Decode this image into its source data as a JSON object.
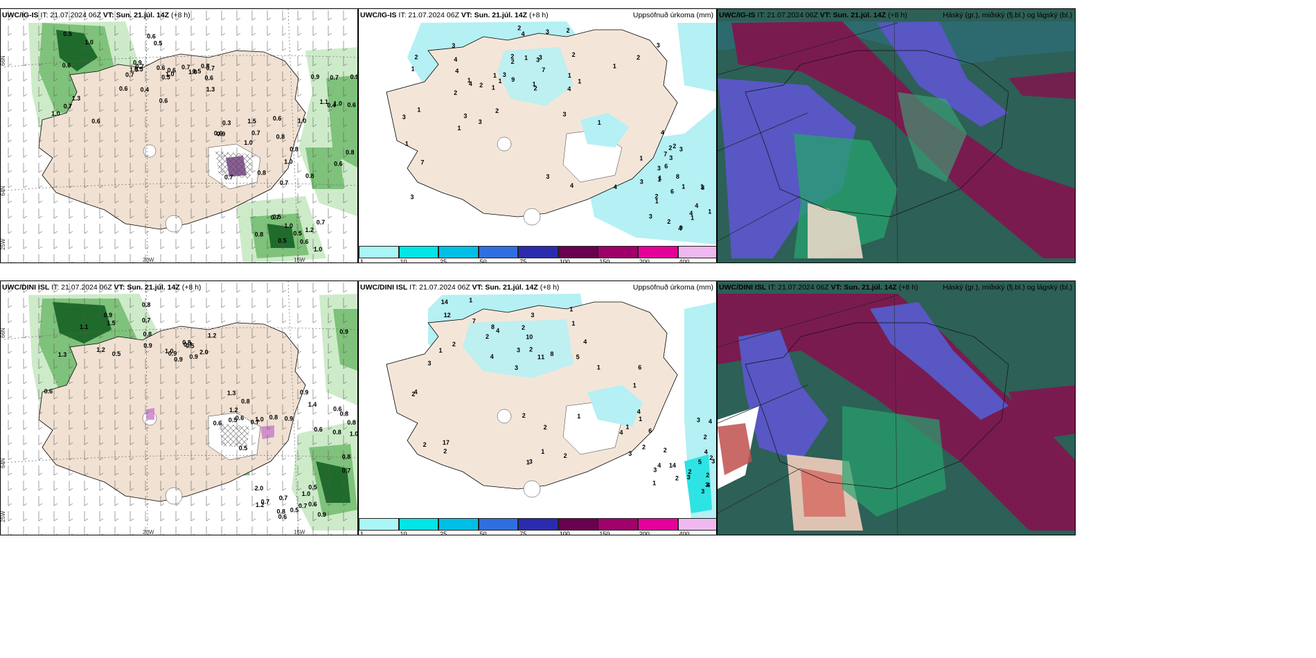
{
  "rows": [
    {
      "model": "UWC/IG-IS",
      "it_label": "IT: 21.07.2024 06Z",
      "vt_label": "VT: Sun. 21.júl. 14Z",
      "lead": "(+8 h)"
    },
    {
      "model": "UWC/DINI ISL",
      "it_label": "IT: 21.07.2024 06Z",
      "vt_label": "VT: Sun. 21.júl. 14Z",
      "lead": "(+8 h)"
    }
  ],
  "precip_title": "Uppsöfnuð úrkoma (mm)",
  "cloud_title": "Háský (gr.), miðský (fj.bl.) og lágský (bl.)",
  "axis_labels": {
    "lat_66": "66N",
    "lat_64": "64N",
    "lon_25": "25W",
    "lon_20": "20W",
    "lon_15": "15W"
  },
  "colorbar": {
    "ticks": [
      "1",
      "10",
      "25",
      "50",
      "75",
      "100",
      "150",
      "200",
      "400"
    ],
    "colors": [
      "#aaf5f5",
      "#00e5e5",
      "#00bfe6",
      "#2f6fe0",
      "#2b2bb0",
      "#6a0050",
      "#a0006a",
      "#e6009a",
      "#f0b8f0"
    ]
  },
  "colors": {
    "land": "#f1e1d2",
    "sea_white": "#ffffff",
    "precip_light": "#b4f0f4",
    "wind_green_light": "#cdebc9",
    "wind_green_mid": "#7fc27b",
    "wind_green_dark": "#1f6b2c",
    "cloud_high": "#2d6056",
    "cloud_mid": "#7a1b4f",
    "cloud_low": "#5857c4"
  },
  "top_wind_labels": [
    "1.0",
    "1.0",
    "0.9",
    "0.8",
    "1.5",
    "0.6",
    "1.3",
    "1.0",
    "0.9",
    "0.7",
    "0.6",
    "0.7",
    "0.6",
    "0.6",
    "0.6",
    "0.5",
    "0.5",
    "0.6",
    "1.0",
    "1.0",
    "1.0",
    "0.9",
    "0.6",
    "0.5",
    "0.6",
    "1.2",
    "0.6",
    "0.7",
    "1.0",
    "0.7",
    "0.7",
    "0.6",
    "0.8",
    "0.7",
    "1.0",
    "0.7",
    "0.4",
    "0.4",
    "0.3",
    "1.5",
    "1.0",
    "0.5",
    "0.8",
    "0.8",
    "0.8",
    "0.8",
    "0.8",
    "0.5",
    "0.7",
    "0.6",
    "0.5",
    "0.5",
    "0.6",
    "0.6",
    "1.0",
    "0.9",
    "1.3",
    "0.5",
    "0.7",
    "1.1",
    "0.7",
    "0.7"
  ],
  "bottom_wind_labels": [
    "1.0",
    "0.9",
    "0.9",
    "0.8",
    "1.5",
    "0.8",
    "0.7",
    "0.9",
    "0.8",
    "0.7",
    "0.9",
    "0.5",
    "0.5",
    "0.7",
    "0.7",
    "0.6",
    "1.1",
    "0.8",
    "1.0",
    "0.8",
    "1.4",
    "0.5",
    "0.5",
    "0.9",
    "0.9",
    "0.6",
    "0.5",
    "0.5",
    "0.7",
    "0.9",
    "1.2",
    "0.8",
    "0.6",
    "0.8",
    "0.7",
    "1.2",
    "1.3",
    "0.8",
    "0.7",
    "0.6",
    "0.8",
    "0.6",
    "0.6",
    "1.2",
    "0.9",
    "1.3",
    "0.9",
    "2.0",
    "0.6",
    "1.2",
    "1.0",
    "2.0",
    "0.8",
    "1.0"
  ],
  "top_precip_labels": [
    "2",
    "3",
    "7",
    "4",
    "1",
    "4",
    "3",
    "1",
    "2",
    "6",
    "8",
    "3",
    "3",
    "4",
    "1",
    "3",
    "6",
    "4",
    "3",
    "1",
    "3",
    "1",
    "4",
    "1",
    "7",
    "1",
    "2",
    "3",
    "4",
    "3",
    "1",
    "1",
    "1",
    "2",
    "2",
    "3",
    "1",
    "1",
    "2",
    "2",
    "3",
    "4",
    "3",
    "3",
    "3",
    "2",
    "1",
    "2",
    "1",
    "4",
    "1",
    "2",
    "3",
    "2",
    "4",
    "1",
    "3",
    "3",
    "1",
    "2",
    "2",
    "2",
    "4",
    "1",
    "8",
    "7",
    "9",
    "9",
    "1",
    "2",
    "1",
    "1",
    "4",
    "1"
  ],
  "bottom_precip_labels": [
    "2",
    "3",
    "4",
    "3",
    "4",
    "1",
    "2",
    "3",
    "4",
    "3",
    "5",
    "6",
    "8",
    "8",
    "3",
    "1",
    "2",
    "3",
    "14",
    "10",
    "5",
    "2",
    "2",
    "1",
    "1",
    "3",
    "1",
    "4",
    "2",
    "2",
    "2",
    "1",
    "3",
    "2",
    "1",
    "1",
    "1",
    "2",
    "4",
    "2",
    "4",
    "2",
    "1",
    "3",
    "3",
    "4",
    "2",
    "3",
    "2",
    "1",
    "4",
    "2",
    "3",
    "4",
    "1",
    "1",
    "12",
    "17",
    "14",
    "7",
    "6",
    "2",
    "1",
    "2",
    "4"
  ]
}
